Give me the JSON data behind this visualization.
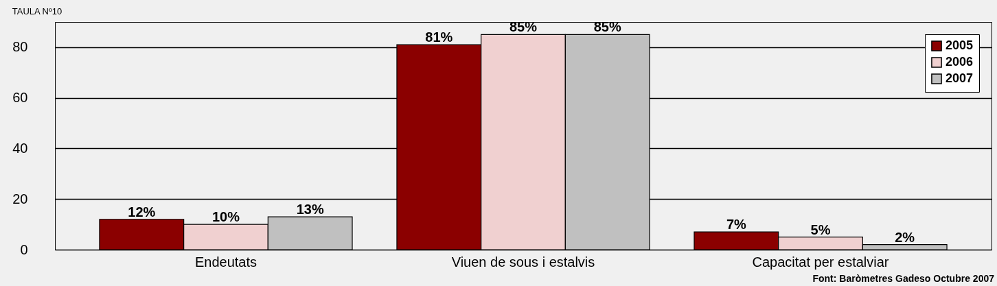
{
  "chart_data": {
    "type": "bar",
    "title": "TAULA Nº10",
    "categories": [
      "Endeutats",
      "Viuen de sous i estalvis",
      "Capacitat per estalviar"
    ],
    "series": [
      {
        "name": "2005",
        "color": "#8b0000",
        "values": [
          12,
          81,
          7
        ],
        "value_labels": [
          "12%",
          "81%",
          "7%"
        ]
      },
      {
        "name": "2006",
        "color": "#f0d0d0",
        "values": [
          10,
          85,
          5
        ],
        "value_labels": [
          "10%",
          "85%",
          "5%"
        ]
      },
      {
        "name": "2007",
        "color": "#c0c0c0",
        "values": [
          13,
          85,
          2
        ],
        "value_labels": [
          "13%",
          "85%",
          "2%"
        ]
      }
    ],
    "ylim": [
      0,
      90
    ],
    "yticks": [
      0,
      20,
      40,
      60,
      80
    ],
    "grid": "y",
    "legend": "top right",
    "annotations": [
      "Font: Baròmetres Gadeso Octubre 2007"
    ]
  }
}
